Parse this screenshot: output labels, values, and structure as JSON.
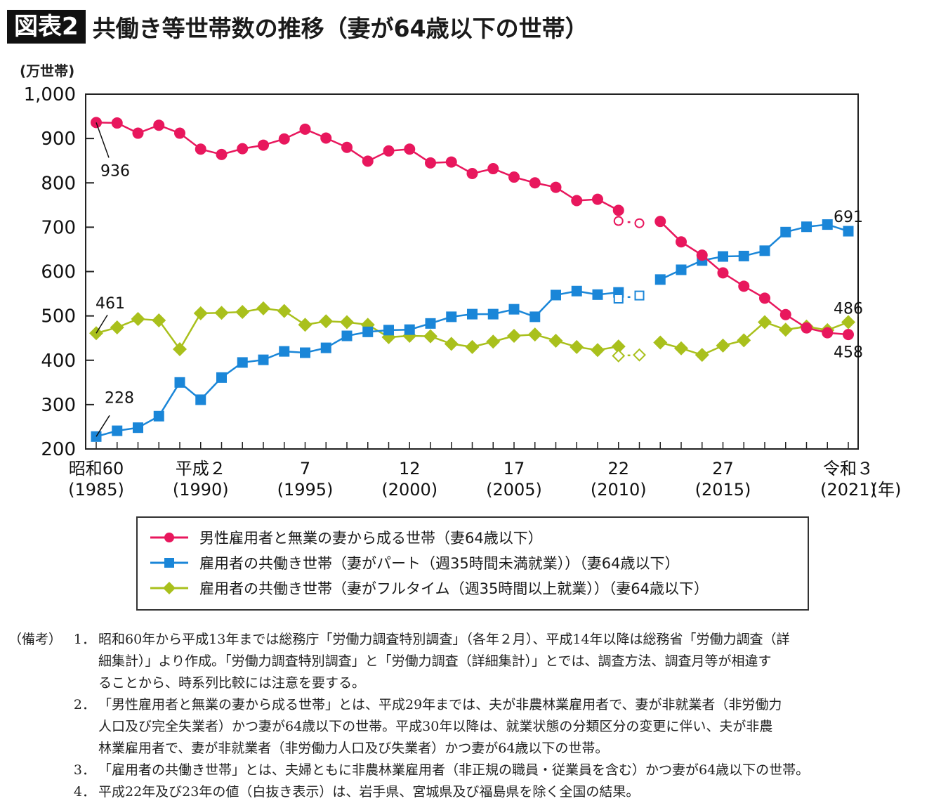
{
  "header": {
    "badge": "図表2",
    "title": "共働き等世帯数の推移（妻が64歳以下の世帯）"
  },
  "chart_data": {
    "type": "line",
    "title": "共働き等世帯数の推移（妻が64歳以下の世帯）",
    "ylabel": "(万世帯)",
    "xlabel": "(年)",
    "ylim": [
      200,
      1000
    ],
    "yticks": [
      200,
      300,
      400,
      500,
      600,
      700,
      800,
      900,
      1000
    ],
    "ytick_labels": [
      "200",
      "300",
      "400",
      "500",
      "600",
      "700",
      "800",
      "900",
      "1,000"
    ],
    "xlim": [
      1985,
      2021
    ],
    "xtick_labels": [
      {
        "year": 1985,
        "line1": "昭和60",
        "line2": "(1985)"
      },
      {
        "year": 1990,
        "line1": "平成２",
        "line2": "(1990)"
      },
      {
        "year": 1995,
        "line1": "7",
        "line2": "(1995)"
      },
      {
        "year": 2000,
        "line1": "12",
        "line2": "(2000)"
      },
      {
        "year": 2005,
        "line1": "17",
        "line2": "(2005)"
      },
      {
        "year": 2010,
        "line1": "22",
        "line2": "(2010)"
      },
      {
        "year": 2015,
        "line1": "27",
        "line2": "(2015)"
      },
      {
        "year": 2021,
        "line1": "令和３",
        "line2": "(2021)"
      }
    ],
    "x_unit_label": "(年)",
    "grid": false,
    "legend_position": "bottom",
    "series": [
      {
        "name": "男性雇用者と無業の妻から成る世帯（妻64歳以下）",
        "color": "#e8175d",
        "marker": "circle",
        "x": [
          1985,
          1986,
          1987,
          1988,
          1989,
          1990,
          1991,
          1992,
          1993,
          1994,
          1995,
          1996,
          1997,
          1998,
          1999,
          2000,
          2001,
          2002,
          2003,
          2004,
          2005,
          2006,
          2007,
          2008,
          2009,
          2010,
          2012,
          2013,
          2014,
          2015,
          2016,
          2017,
          2018,
          2019,
          2020,
          2021
        ],
        "values": [
          936,
          935,
          912,
          930,
          912,
          876,
          864,
          877,
          885,
          899,
          921,
          901,
          880,
          849,
          872,
          876,
          845,
          847,
          821,
          832,
          813,
          800,
          790,
          760,
          763,
          738,
          713,
          667,
          637,
          597,
          567,
          540,
          503,
          473,
          462,
          458
        ],
        "hollow": {
          "x": [
            2010,
            2011
          ],
          "values": [
            714,
            709
          ]
        },
        "annotations": [
          {
            "x": 1985,
            "label": "936"
          },
          {
            "x": 2021,
            "label": "458"
          }
        ]
      },
      {
        "name": "雇用者の共働き世帯（妻がパート（週35時間未満就業））（妻64歳以下）",
        "color": "#1a86d8",
        "marker": "square",
        "x": [
          1985,
          1986,
          1987,
          1988,
          1989,
          1990,
          1991,
          1992,
          1993,
          1994,
          1995,
          1996,
          1997,
          1998,
          1999,
          2000,
          2001,
          2002,
          2003,
          2004,
          2005,
          2006,
          2007,
          2008,
          2009,
          2010,
          2012,
          2013,
          2014,
          2015,
          2016,
          2017,
          2018,
          2019,
          2020,
          2021
        ],
        "values": [
          228,
          241,
          248,
          274,
          350,
          311,
          361,
          395,
          401,
          420,
          417,
          428,
          455,
          464,
          468,
          469,
          483,
          498,
          504,
          504,
          515,
          498,
          547,
          556,
          548,
          553,
          582,
          604,
          625,
          634,
          635,
          647,
          689,
          701,
          706,
          691
        ],
        "hollow": {
          "x": [
            2010,
            2011
          ],
          "values": [
            539,
            546
          ]
        },
        "annotations": [
          {
            "x": 1985,
            "label": "228"
          },
          {
            "x": 2021,
            "label": "691"
          }
        ]
      },
      {
        "name": "雇用者の共働き世帯（妻がフルタイム（週35時間以上就業））（妻64歳以下）",
        "color": "#a9c01c",
        "marker": "diamond",
        "x": [
          1985,
          1986,
          1987,
          1988,
          1989,
          1990,
          1991,
          1992,
          1993,
          1994,
          1995,
          1996,
          1997,
          1998,
          1999,
          2000,
          2001,
          2002,
          2003,
          2004,
          2005,
          2006,
          2007,
          2008,
          2009,
          2010,
          2012,
          2013,
          2014,
          2015,
          2016,
          2017,
          2018,
          2019,
          2020,
          2021
        ],
        "values": [
          461,
          474,
          493,
          490,
          425,
          506,
          507,
          509,
          517,
          511,
          480,
          488,
          486,
          480,
          452,
          455,
          454,
          437,
          430,
          442,
          455,
          458,
          444,
          430,
          423,
          431,
          440,
          427,
          412,
          433,
          445,
          486,
          469,
          476,
          468,
          486
        ],
        "hollow": {
          "x": [
            2010,
            2011
          ],
          "values": [
            410,
            412
          ]
        },
        "annotations": [
          {
            "x": 1985,
            "label": "461"
          },
          {
            "x": 2021,
            "label": "486"
          }
        ]
      }
    ]
  },
  "legend": {
    "items": [
      {
        "label": "男性雇用者と無業の妻から成る世帯（妻64歳以下）"
      },
      {
        "label": "雇用者の共働き世帯（妻がパート（週35時間未満就業））（妻64歳以下）"
      },
      {
        "label": "雇用者の共働き世帯（妻がフルタイム（週35時間以上就業））（妻64歳以下）"
      }
    ]
  },
  "notes": {
    "heading": "（備考）",
    "items": [
      {
        "num": "1．",
        "lines": [
          "昭和60年から平成13年までは総務庁「労働力調査特別調査」（各年２月）、平成14年以降は総務省「労働力調査（詳",
          "細集計）」より作成。「労働力調査特別調査」と「労働力調査（詳細集計）」とでは、調査方法、調査月等が相違す",
          "ることから、時系列比較には注意を要する。"
        ]
      },
      {
        "num": "2．",
        "lines": [
          "「男性雇用者と無業の妻から成る世帯」とは、平成29年までは、夫が非農林業雇用者で、妻が非就業者（非労働力",
          "人口及び完全失業者）かつ妻が64歳以下の世帯。平成30年以降は、就業状態の分類区分の変更に伴い、夫が非農",
          "林業雇用者で、妻が非就業者（非労働力人口及び失業者）かつ妻が64歳以下の世帯。"
        ]
      },
      {
        "num": "3．",
        "lines": [
          "「雇用者の共働き世帯」とは、夫婦ともに非農林業雇用者（非正規の職員・従業員を含む）かつ妻が64歳以下の世帯。"
        ]
      },
      {
        "num": "4．",
        "lines": [
          "平成22年及び23年の値（白抜き表示）は、岩手県、宮城県及び福島県を除く全国の結果。"
        ]
      }
    ]
  }
}
